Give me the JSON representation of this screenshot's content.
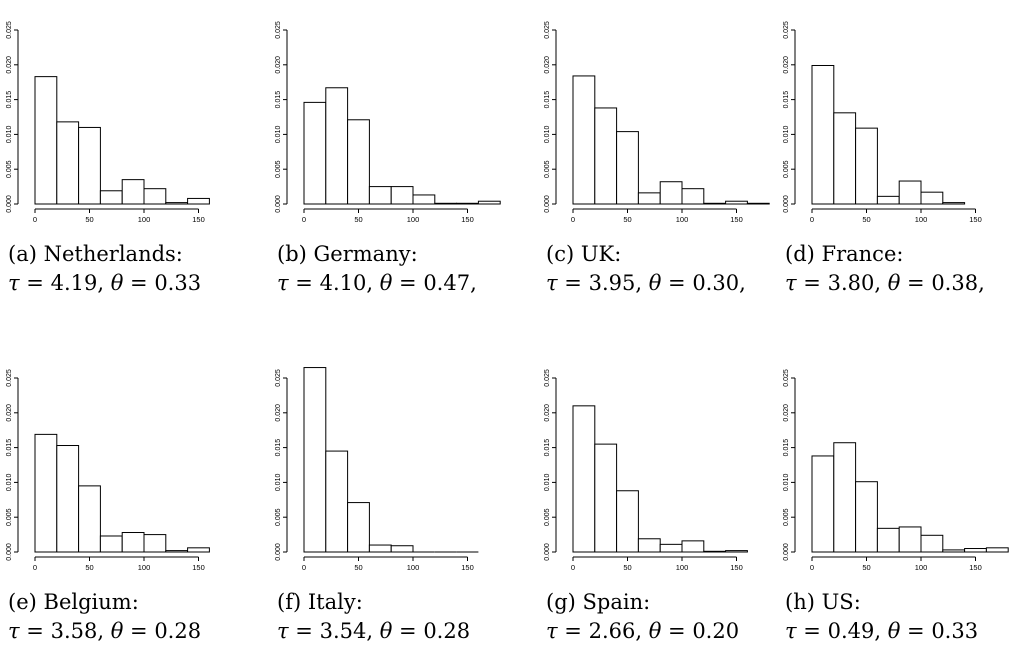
{
  "chart_data": [
    {
      "type": "bar",
      "label": "(a)",
      "country": "Netherlands:",
      "tau": "4.19",
      "theta": "0.33",
      "trail": "",
      "xlim": [
        0,
        180
      ],
      "ylim": [
        0,
        0.025
      ],
      "bin_width": 20,
      "x_ticks": [
        "0",
        "50",
        "100",
        "150"
      ],
      "y_ticks": [
        "0.000",
        "0.005",
        "0.010",
        "0.015",
        "0.020",
        "0.025"
      ],
      "values": [
        0.0183,
        0.0118,
        0.011,
        0.0019,
        0.0035,
        0.0022,
        0.0002,
        0.0008
      ]
    },
    {
      "type": "bar",
      "label": "(b)",
      "country": "Germany:",
      "tau": "4.10",
      "theta": "0.47",
      "trail": ",",
      "xlim": [
        0,
        180
      ],
      "ylim": [
        0,
        0.025
      ],
      "bin_width": 20,
      "x_ticks": [
        "0",
        "50",
        "100",
        "150"
      ],
      "y_ticks": [
        "0.000",
        "0.005",
        "0.010",
        "0.015",
        "0.020",
        "0.025"
      ],
      "values": [
        0.0146,
        0.0167,
        0.0121,
        0.0025,
        0.0025,
        0.0013,
        0.0001,
        0.0001,
        0.0004
      ]
    },
    {
      "type": "bar",
      "label": "(c)",
      "country": "UK:",
      "tau": "3.95",
      "theta": "0.30",
      "trail": ",",
      "xlim": [
        0,
        180
      ],
      "ylim": [
        0,
        0.025
      ],
      "bin_width": 20,
      "x_ticks": [
        "0",
        "50",
        "100",
        "150"
      ],
      "y_ticks": [
        "0.000",
        "0.005",
        "0.010",
        "0.015",
        "0.020",
        "0.025"
      ],
      "values": [
        0.0184,
        0.0138,
        0.0104,
        0.0016,
        0.0032,
        0.0022,
        0.0001,
        0.0004,
        0.0001
      ]
    },
    {
      "type": "bar",
      "label": "(d)",
      "country": "France:",
      "tau": "3.80",
      "theta": "0.38",
      "trail": ",",
      "xlim": [
        0,
        180
      ],
      "ylim": [
        0,
        0.025
      ],
      "bin_width": 20,
      "x_ticks": [
        "0",
        "50",
        "100",
        "150"
      ],
      "y_ticks": [
        "0.000",
        "0.005",
        "0.010",
        "0.015",
        "0.020",
        "0.025"
      ],
      "values": [
        0.0199,
        0.0131,
        0.0109,
        0.0011,
        0.0033,
        0.0017,
        0.0002
      ]
    },
    {
      "type": "bar",
      "label": "(e)",
      "country": "Belgium:",
      "tau": "3.58",
      "theta": "0.28",
      "trail": "",
      "xlim": [
        0,
        180
      ],
      "ylim": [
        0,
        0.025
      ],
      "bin_width": 20,
      "x_ticks": [
        "0",
        "50",
        "100",
        "150"
      ],
      "y_ticks": [
        "0.000",
        "0.005",
        "0.010",
        "0.015",
        "0.020",
        "0.025"
      ],
      "values": [
        0.0169,
        0.0153,
        0.0095,
        0.0023,
        0.0028,
        0.0025,
        0.0002,
        0.0006
      ]
    },
    {
      "type": "bar",
      "label": "(f)",
      "country": "Italy:",
      "tau": "3.54",
      "theta": "0.28",
      "trail": "",
      "xlim": [
        0,
        180
      ],
      "ylim": [
        0,
        0.025
      ],
      "bin_width": 20,
      "x_ticks": [
        "0",
        "50",
        "100",
        "150"
      ],
      "y_ticks": [
        "0.000",
        "0.005",
        "0.010",
        "0.015",
        "0.020",
        "0.025"
      ],
      "values": [
        0.0265,
        0.0145,
        0.0071,
        0.001,
        0.0009,
        0.0,
        0.0,
        0.0
      ]
    },
    {
      "type": "bar",
      "label": "(g)",
      "country": "Spain:",
      "tau": "2.66",
      "theta": "0.20",
      "trail": "",
      "xlim": [
        0,
        180
      ],
      "ylim": [
        0,
        0.025
      ],
      "bin_width": 20,
      "x_ticks": [
        "0",
        "50",
        "100",
        "150"
      ],
      "y_ticks": [
        "0.000",
        "0.005",
        "0.010",
        "0.015",
        "0.020",
        "0.025"
      ],
      "values": [
        0.021,
        0.0155,
        0.0088,
        0.0019,
        0.0011,
        0.0016,
        0.0001,
        0.0002
      ]
    },
    {
      "type": "bar",
      "label": "(h)",
      "country": "US:",
      "tau": "0.49",
      "theta": "0.33",
      "trail": "",
      "xlim": [
        0,
        180
      ],
      "ylim": [
        0,
        0.025
      ],
      "bin_width": 20,
      "x_ticks": [
        "0",
        "50",
        "100",
        "150"
      ],
      "y_ticks": [
        "0.000",
        "0.005",
        "0.010",
        "0.015",
        "0.020",
        "0.025"
      ],
      "values": [
        0.0138,
        0.0157,
        0.0101,
        0.0034,
        0.0036,
        0.0024,
        0.0003,
        0.0005,
        0.0006
      ]
    }
  ]
}
